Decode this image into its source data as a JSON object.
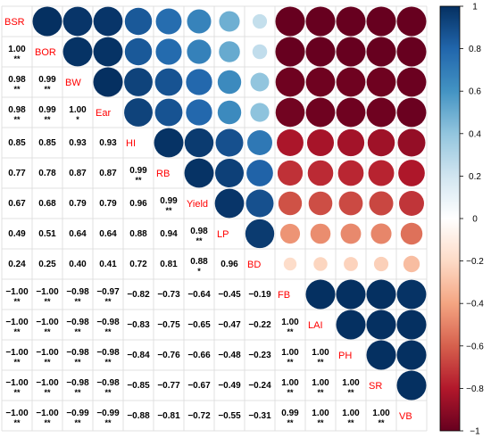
{
  "chart_data": {
    "type": "heatmap",
    "subtype": "correlation-matrix (upper: circles, lower: coefficients)",
    "variables": [
      "BSR",
      "BOR",
      "BW",
      "Ear",
      "HI",
      "RB",
      "Yield",
      "LP",
      "BD",
      "FB",
      "LAI",
      "PH",
      "SR",
      "VB"
    ],
    "lower_labels": [
      [],
      [
        "1.00"
      ],
      [
        "0.98",
        "0.99"
      ],
      [
        "0.98",
        "0.99",
        "1.00"
      ],
      [
        "0.85",
        "0.85",
        "0.93",
        "0.93"
      ],
      [
        "0.77",
        "0.78",
        "0.87",
        "0.87",
        "0.99"
      ],
      [
        "0.67",
        "0.68",
        "0.79",
        "0.79",
        "0.96",
        "0.99"
      ],
      [
        "0.49",
        "0.51",
        "0.64",
        "0.64",
        "0.88",
        "0.94",
        "0.98"
      ],
      [
        "0.24",
        "0.25",
        "0.40",
        "0.41",
        "0.72",
        "0.81",
        "0.88",
        "0.96"
      ],
      [
        "−1.00",
        "−1.00",
        "−0.98",
        "−0.97",
        "−0.82",
        "−0.73",
        "−0.64",
        "−0.45",
        "−0.19"
      ],
      [
        "−1.00",
        "−1.00",
        "−0.98",
        "−0.98",
        "−0.83",
        "−0.75",
        "−0.65",
        "−0.47",
        "−0.22",
        "1.00"
      ],
      [
        "−1.00",
        "−1.00",
        "−0.98",
        "−0.98",
        "−0.84",
        "−0.76",
        "−0.66",
        "−0.48",
        "−0.23",
        "1.00",
        "1.00"
      ],
      [
        "−1.00",
        "−1.00",
        "−0.98",
        "−0.98",
        "−0.85",
        "−0.77",
        "−0.67",
        "−0.49",
        "−0.24",
        "1.00",
        "1.00",
        "1.00"
      ],
      [
        "−1.00",
        "−1.00",
        "−0.99",
        "−0.99",
        "−0.88",
        "−0.81",
        "−0.72",
        "−0.55",
        "−0.31",
        "0.99",
        "1.00",
        "1.00",
        "1.00"
      ]
    ],
    "stars": [
      [],
      [
        "**"
      ],
      [
        "**",
        "**"
      ],
      [
        "**",
        "**",
        "*"
      ],
      [
        "",
        "",
        "",
        ""
      ],
      [
        "",
        "",
        "",
        "",
        "**"
      ],
      [
        "",
        "",
        "",
        "",
        "",
        "**"
      ],
      [
        "",
        "",
        "",
        "",
        "",
        "",
        "**"
      ],
      [
        "",
        "",
        "",
        "",
        "",
        "",
        "*",
        ""
      ],
      [
        "**",
        "**",
        "**",
        "**",
        "",
        "",
        "",
        "",
        ""
      ],
      [
        "**",
        "**",
        "**",
        "**",
        "",
        "",
        "",
        "",
        "",
        "**"
      ],
      [
        "**",
        "**",
        "**",
        "**",
        "",
        "",
        "",
        "",
        "",
        "**",
        "**"
      ],
      [
        "**",
        "**",
        "**",
        "**",
        "",
        "",
        "",
        "",
        "",
        "**",
        "**",
        "**"
      ],
      [
        "**",
        "**",
        "**",
        "**",
        "",
        "",
        "",
        "",
        "",
        "**",
        "**",
        "**",
        "**"
      ]
    ],
    "color_scale": {
      "range": [
        -1,
        1
      ],
      "ticks": [
        "1",
        "0.8",
        "0.6",
        "0.4",
        "0.2",
        "0",
        "−0.2",
        "−0.4",
        "−0.6",
        "−0.8",
        "−1"
      ],
      "stops": [
        {
          "value": -1.0,
          "color": "#67001f"
        },
        {
          "value": -0.8,
          "color": "#b2182b"
        },
        {
          "value": -0.6,
          "color": "#d6604d"
        },
        {
          "value": -0.4,
          "color": "#f4a582"
        },
        {
          "value": -0.2,
          "color": "#fddbc7"
        },
        {
          "value": 0.0,
          "color": "#ffffff"
        },
        {
          "value": 0.2,
          "color": "#d1e5f0"
        },
        {
          "value": 0.4,
          "color": "#92c5de"
        },
        {
          "value": 0.6,
          "color": "#4393c3"
        },
        {
          "value": 0.8,
          "color": "#2166ac"
        },
        {
          "value": 1.0,
          "color": "#053061"
        }
      ]
    },
    "colors": {
      "diagonal_label": "#ff0000",
      "grid": "#d9d9d9"
    }
  }
}
